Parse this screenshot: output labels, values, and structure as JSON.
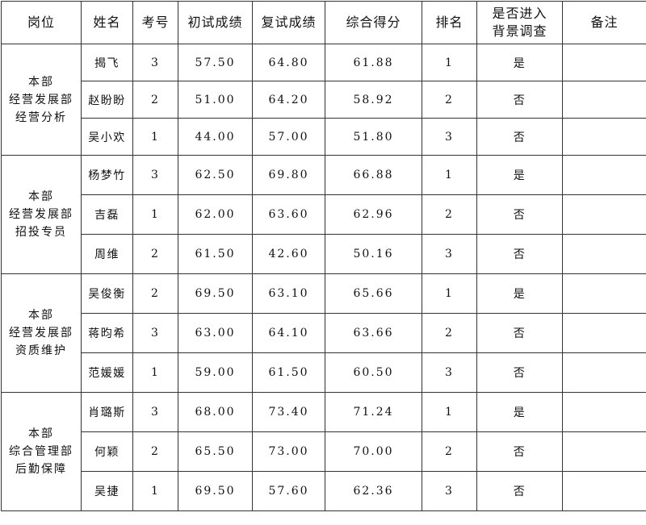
{
  "headers": [
    "岗位",
    "姓名",
    "考号",
    "初试成绩",
    "复试成绩",
    "综合得分",
    "排名",
    "是否进入背景调查",
    "备注"
  ],
  "header_background_check_lines": [
    "是否进入",
    "背景调查"
  ],
  "groups": [
    {
      "position_lines": [
        "本部",
        "经营发展部",
        "经营分析"
      ],
      "rows": [
        {
          "name": "揭飞",
          "id": "3",
          "initial": "57.50",
          "retest": "64.80",
          "total": "61.88",
          "rank": "1",
          "bg": "是",
          "note": ""
        },
        {
          "name": "赵盼盼",
          "id": "2",
          "initial": "51.00",
          "retest": "64.20",
          "total": "58.92",
          "rank": "2",
          "bg": "否",
          "note": ""
        },
        {
          "name": "吴小欢",
          "id": "1",
          "initial": "44.00",
          "retest": "57.00",
          "total": "51.80",
          "rank": "3",
          "bg": "否",
          "note": ""
        }
      ]
    },
    {
      "position_lines": [
        "本部",
        "经营发展部",
        "招投专员"
      ],
      "rows": [
        {
          "name": "杨梦竹",
          "id": "3",
          "initial": "62.50",
          "retest": "69.80",
          "total": "66.88",
          "rank": "1",
          "bg": "是",
          "note": ""
        },
        {
          "name": "吉磊",
          "id": "1",
          "initial": "62.00",
          "retest": "63.60",
          "total": "62.96",
          "rank": "2",
          "bg": "否",
          "note": ""
        },
        {
          "name": "周维",
          "id": "2",
          "initial": "61.50",
          "retest": "42.60",
          "total": "50.16",
          "rank": "3",
          "bg": "否",
          "note": ""
        }
      ]
    },
    {
      "position_lines": [
        "本部",
        "经营发展部",
        "资质维护"
      ],
      "rows": [
        {
          "name": "吴俊衡",
          "id": "2",
          "initial": "69.50",
          "retest": "63.10",
          "total": "65.66",
          "rank": "1",
          "bg": "是",
          "note": ""
        },
        {
          "name": "蒋昀希",
          "id": "3",
          "initial": "63.00",
          "retest": "64.10",
          "total": "63.66",
          "rank": "2",
          "bg": "否",
          "note": ""
        },
        {
          "name": "范媛媛",
          "id": "1",
          "initial": "59.00",
          "retest": "61.50",
          "total": "60.50",
          "rank": "3",
          "bg": "否",
          "note": ""
        }
      ]
    },
    {
      "position_lines": [
        "本部",
        "综合管理部",
        "后勤保障"
      ],
      "rows": [
        {
          "name": "肖璐斯",
          "id": "3",
          "initial": "68.00",
          "retest": "73.40",
          "total": "71.24",
          "rank": "1",
          "bg": "是",
          "note": ""
        },
        {
          "name": "何颖",
          "id": "2",
          "initial": "65.50",
          "retest": "73.00",
          "total": "70.00",
          "rank": "2",
          "bg": "否",
          "note": ""
        },
        {
          "name": "吴捷",
          "id": "1",
          "initial": "69.50",
          "retest": "57.60",
          "total": "62.36",
          "rank": "3",
          "bg": "否",
          "note": ""
        }
      ]
    }
  ]
}
